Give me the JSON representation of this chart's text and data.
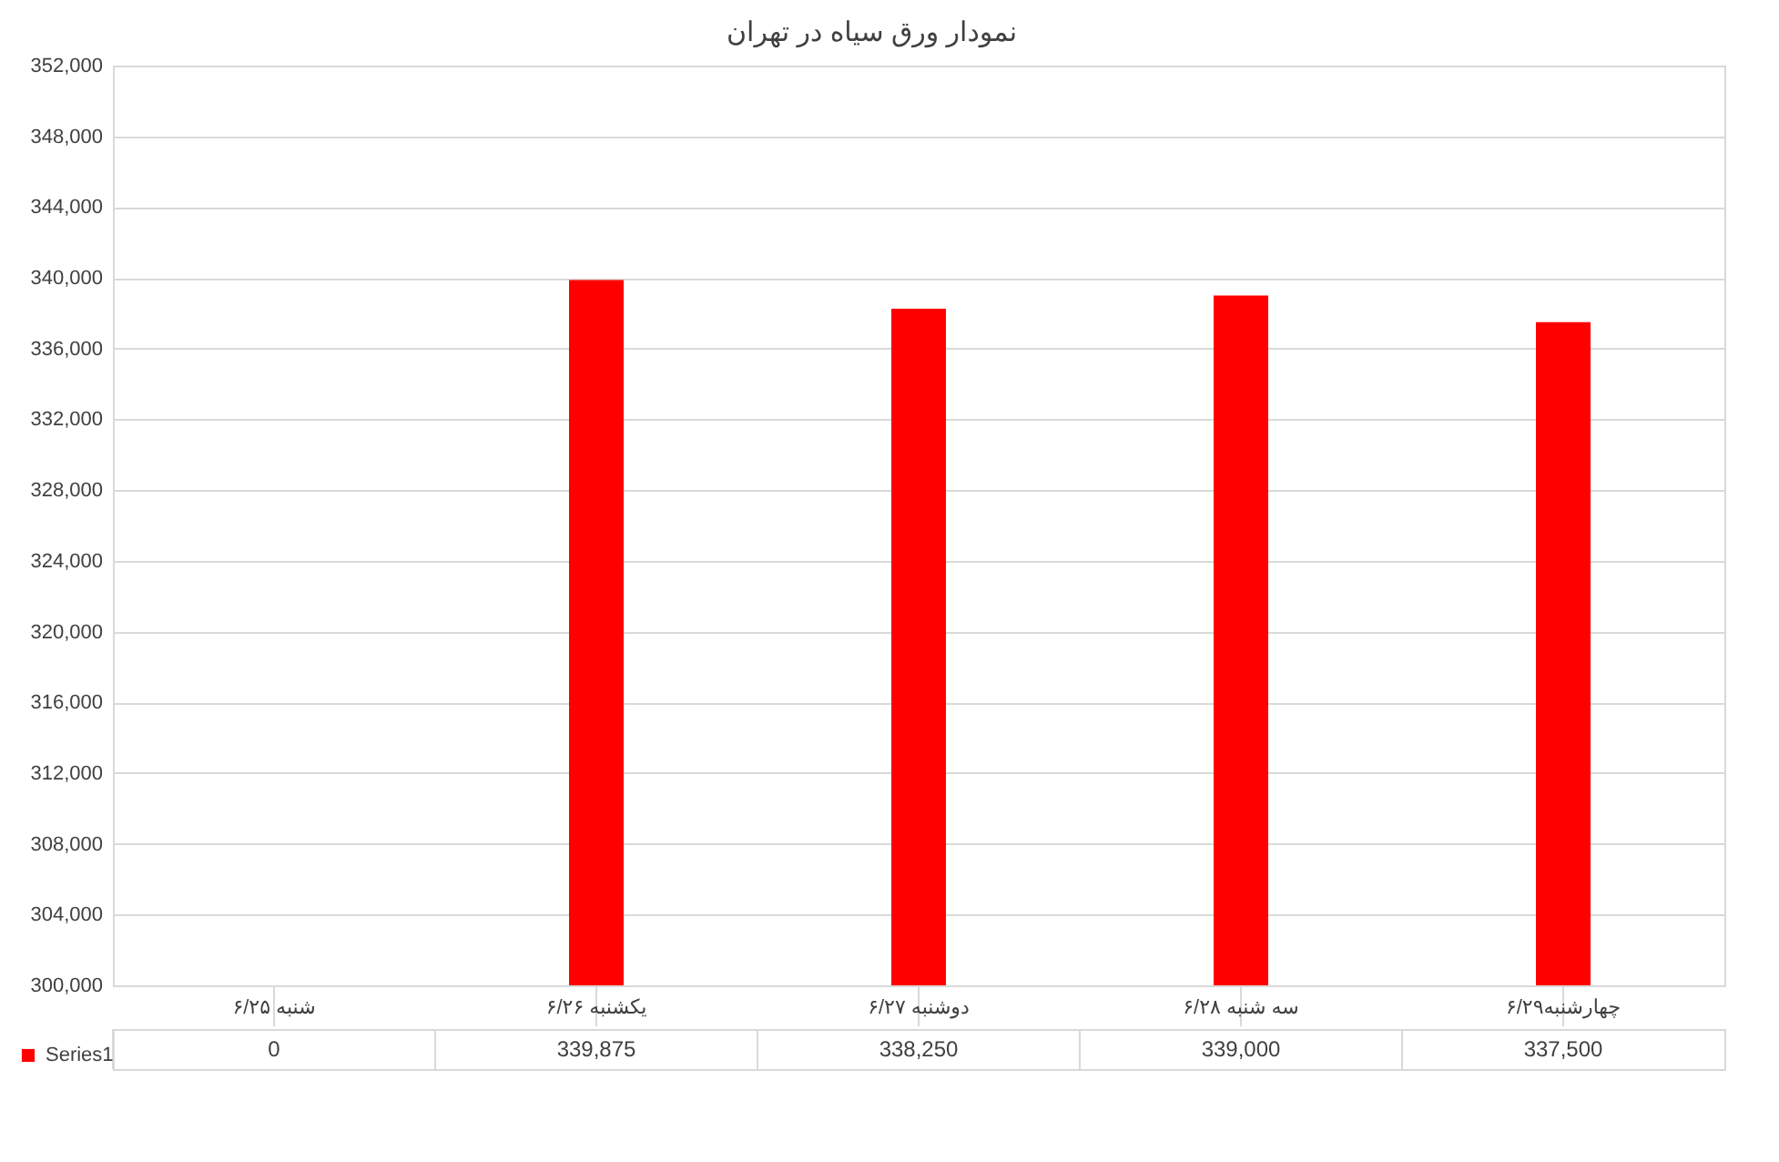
{
  "chart_data": {
    "type": "bar",
    "title": "نمودار ورق سیاه در تهران",
    "categories": [
      "شنبه ۶/۲۵",
      "یکشنبه ۶/۲۶",
      "دوشنبه ۶/۲۷",
      "سه شنبه ۶/۲۸",
      "چهارشنبه۶/۲۹"
    ],
    "series": [
      {
        "name": "Series1",
        "color": "#ff0000",
        "values": [
          null,
          339875,
          338250,
          339000,
          337500
        ],
        "value_labels": [
          "0",
          "339,875",
          "338,250",
          "339,000",
          "337,500"
        ]
      }
    ],
    "ylim": [
      300000,
      352000
    ],
    "yticks": [
      {
        "value": 300000,
        "label": "300,000"
      },
      {
        "value": 304000,
        "label": "304,000"
      },
      {
        "value": 308000,
        "label": "308,000"
      },
      {
        "value": 312000,
        "label": "312,000"
      },
      {
        "value": 316000,
        "label": "316,000"
      },
      {
        "value": 320000,
        "label": "320,000"
      },
      {
        "value": 324000,
        "label": "324,000"
      },
      {
        "value": 328000,
        "label": "328,000"
      },
      {
        "value": 332000,
        "label": "332,000"
      },
      {
        "value": 336000,
        "label": "336,000"
      },
      {
        "value": 340000,
        "label": "340,000"
      },
      {
        "value": 344000,
        "label": "344,000"
      },
      {
        "value": 348000,
        "label": "348,000"
      },
      {
        "value": 352000,
        "label": "352,000"
      }
    ],
    "grid": "y",
    "legend": "bottom left"
  }
}
